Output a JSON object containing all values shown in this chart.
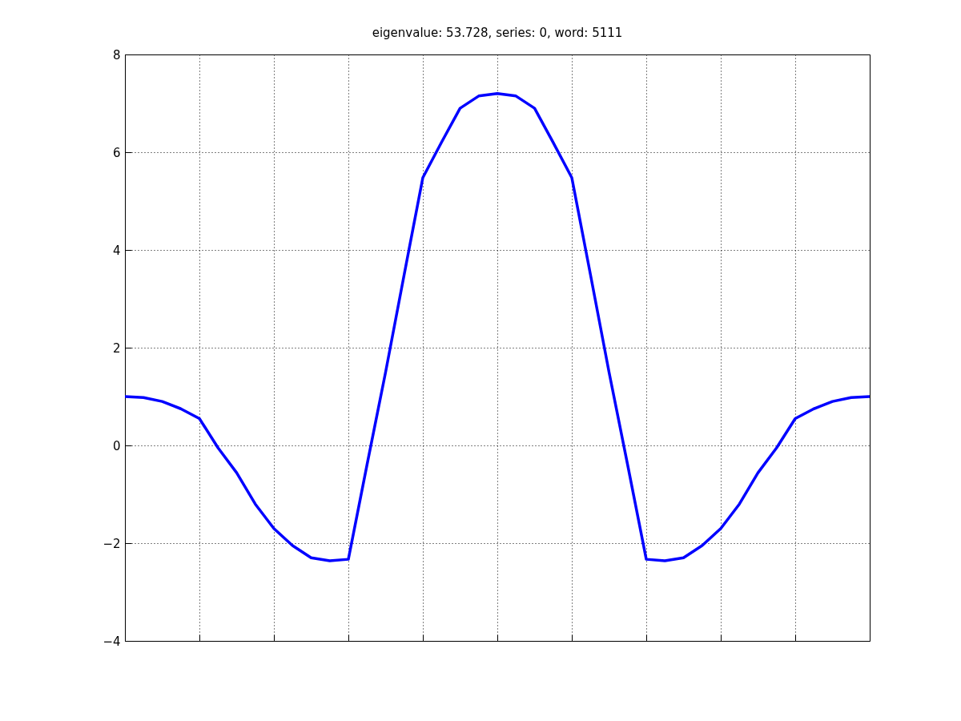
{
  "chart_data": {
    "type": "line",
    "title": "eigenvalue: 53.728, series: 0, word: 5111",
    "categories": [
      null,
      null,
      null,
      null,
      null,
      null,
      null,
      null,
      null,
      null,
      null,
      null,
      null,
      null,
      null,
      null,
      null,
      null,
      null,
      null,
      null,
      null,
      null,
      null,
      null,
      null,
      null,
      null,
      null,
      null,
      null,
      null,
      null,
      null,
      null,
      null,
      null,
      null,
      null,
      null,
      null
    ],
    "series": [
      {
        "color": "#0000ff",
        "values": [
          1.0,
          0.98,
          0.9,
          0.75,
          0.55,
          -0.05,
          -0.56,
          -1.2,
          -1.7,
          -2.05,
          -2.3,
          -2.36,
          -2.33,
          -0.4,
          1.5,
          3.5,
          5.48,
          6.2,
          6.9,
          7.15,
          7.2,
          7.15,
          6.9,
          6.2,
          5.48,
          3.5,
          1.5,
          -0.4,
          -2.33,
          -2.36,
          -2.3,
          -2.05,
          -1.7,
          -1.2,
          -0.56,
          -0.05,
          0.55,
          0.75,
          0.9,
          0.98,
          1.0
        ]
      }
    ],
    "ylim": [
      -4,
      8
    ],
    "yticks": [
      -4,
      -2,
      0,
      2,
      4,
      6,
      8
    ],
    "grid": true,
    "tick_labels": "y",
    "line_style": "solid",
    "marker": "none"
  }
}
